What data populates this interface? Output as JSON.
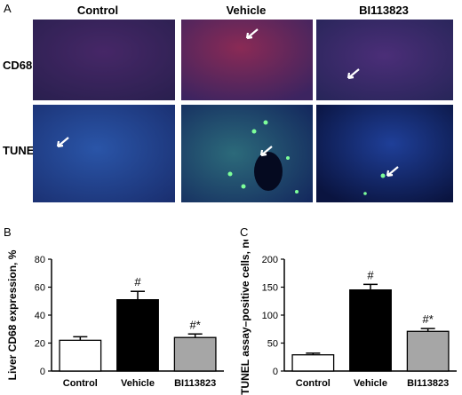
{
  "figure": {
    "panel_a": "A",
    "panel_b": "B",
    "panel_c": "C",
    "columns": [
      "Control",
      "Vehicle",
      "BI113823"
    ],
    "rows": [
      "CD68",
      "TUNEL"
    ]
  },
  "chart_data": [
    {
      "type": "bar",
      "title": "",
      "categories": [
        "Control",
        "Vehicle",
        "BI113823"
      ],
      "values": [
        22,
        51,
        24
      ],
      "errors": [
        2.5,
        6,
        2.5
      ],
      "ylabel": "Liver CD68 expression, %",
      "xlabel": "",
      "ylim": [
        0,
        80
      ],
      "yticks": [
        "0",
        "20",
        "40",
        "60",
        "80"
      ],
      "annotations": [
        "",
        "#",
        "#*"
      ],
      "colors": [
        "#ffffff",
        "#000000",
        "#a6a6a6"
      ],
      "grid": false
    },
    {
      "type": "bar",
      "title": "",
      "categories": [
        "Control",
        "Vehicle",
        "BI113823"
      ],
      "values": [
        29,
        145,
        71
      ],
      "errors": [
        3,
        10,
        5
      ],
      "ylabel": "TUNEL assay–positive cells, no",
      "xlabel": "",
      "ylim": [
        0,
        200
      ],
      "yticks": [
        "0",
        "50",
        "100",
        "150",
        "200"
      ],
      "annotations": [
        "",
        "#",
        "#*"
      ],
      "colors": [
        "#ffffff",
        "#000000",
        "#a6a6a6"
      ],
      "grid": false
    }
  ]
}
